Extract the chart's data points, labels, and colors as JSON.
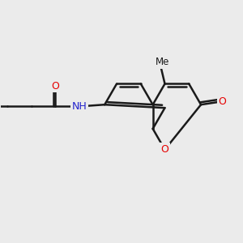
{
  "background_color": "#ebebeb",
  "bond_color": "#1a1a1a",
  "bond_width": 1.8,
  "atom_colors": {
    "O": "#e60000",
    "N": "#2222cc",
    "C": "#1a1a1a"
  },
  "figsize": [
    3.0,
    3.0
  ],
  "dpi": 100,
  "xlim": [
    -4.5,
    5.5
  ],
  "ylim": [
    -3.5,
    3.5
  ]
}
